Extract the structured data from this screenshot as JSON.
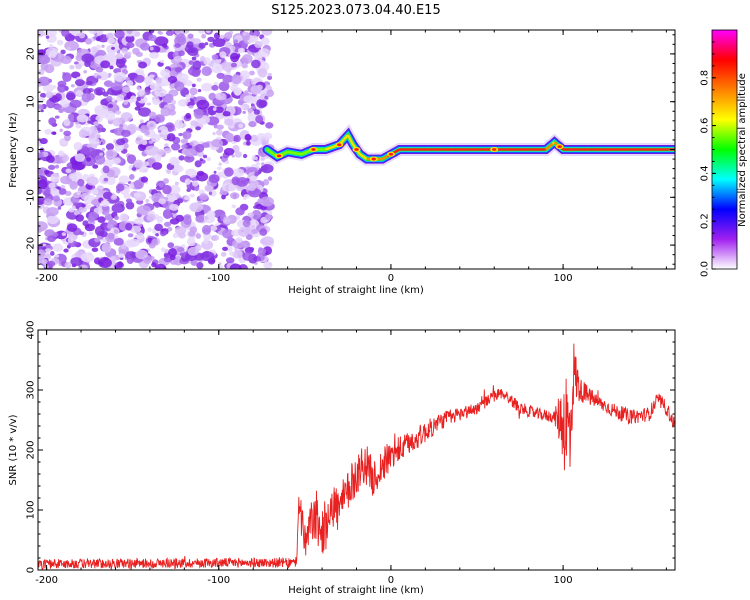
{
  "figure": {
    "title": "S125.2023.073.04.40.E15"
  },
  "chart_data": [
    {
      "type": "heatmap",
      "title": "",
      "xlabel": "Height of straight line (km)",
      "ylabel": "Frequency (Hz)",
      "xlim": [
        -205,
        165
      ],
      "ylim": [
        -25,
        25
      ],
      "xticks": [
        -200,
        -100,
        0,
        100
      ],
      "yticks": [
        -20,
        -10,
        0,
        10,
        20
      ],
      "noise_region_x": [
        -205,
        -70
      ],
      "ridge": {
        "x": [
          -72,
          -66,
          -60,
          -52,
          -45,
          -38,
          -30,
          -25,
          -22,
          -18,
          -14,
          -10,
          -5,
          0,
          5,
          10,
          20,
          40,
          60,
          80,
          90,
          95,
          100,
          120,
          165
        ],
        "freq": [
          0,
          -1.5,
          -0.5,
          -1,
          0,
          0,
          1,
          3,
          1,
          -1,
          -2,
          -2,
          -2,
          -1,
          0,
          0,
          0,
          0,
          0,
          0,
          0,
          1.5,
          0,
          0,
          0
        ],
        "amplitude": [
          0.35,
          0.45,
          0.5,
          0.5,
          0.55,
          0.6,
          0.65,
          0.7,
          0.7,
          0.7,
          0.75,
          0.8,
          0.85,
          0.9,
          0.95,
          0.95,
          0.95,
          0.95,
          0.95,
          0.95,
          0.9,
          0.75,
          0.9,
          0.95,
          0.95
        ]
      },
      "colorbar": {
        "label": "Normalized spectral amplitude",
        "range": [
          0,
          1
        ],
        "ticks": [
          "0.0",
          "0.2",
          "0.4",
          "0.6",
          "0.8"
        ],
        "colors": [
          "#ffffff",
          "#a020f0",
          "#0000ff",
          "#00ffff",
          "#00ff00",
          "#ffff00",
          "#ff8000",
          "#ff0000",
          "#ff00ff"
        ]
      }
    },
    {
      "type": "line",
      "title": "",
      "xlabel": "Height of straight line (km)",
      "ylabel": "SNR (10 * v/v)",
      "xlim": [
        -205,
        165
      ],
      "ylim": [
        0,
        400
      ],
      "xticks": [
        -200,
        -100,
        0,
        100
      ],
      "yticks": [
        0,
        100,
        200,
        300,
        400
      ],
      "color": "#e82020",
      "series": [
        {
          "x": [
            -205,
            -100,
            -55,
            -53,
            -50,
            -45,
            -40,
            -35,
            -30,
            -25,
            -20,
            -15,
            -10,
            -5,
            0,
            10,
            20,
            30,
            40,
            50,
            60,
            65,
            75,
            85,
            95,
            100,
            102,
            104,
            106,
            110,
            120,
            130,
            140,
            150,
            155,
            160,
            165
          ],
          "y": [
            10,
            12,
            12,
            120,
            40,
            90,
            60,
            110,
            100,
            130,
            160,
            180,
            150,
            175,
            190,
            210,
            230,
            250,
            260,
            270,
            290,
            295,
            270,
            260,
            255,
            250,
            240,
            220,
            330,
            300,
            280,
            265,
            255,
            260,
            285,
            270,
            240
          ],
          "noise_amplitude": [
            8,
            8,
            8,
            45,
            35,
            40,
            40,
            40,
            40,
            35,
            35,
            35,
            30,
            30,
            25,
            20,
            18,
            15,
            12,
            10,
            10,
            10,
            10,
            10,
            10,
            70,
            110,
            90,
            60,
            20,
            12,
            12,
            12,
            12,
            12,
            12,
            12
          ]
        }
      ]
    }
  ]
}
